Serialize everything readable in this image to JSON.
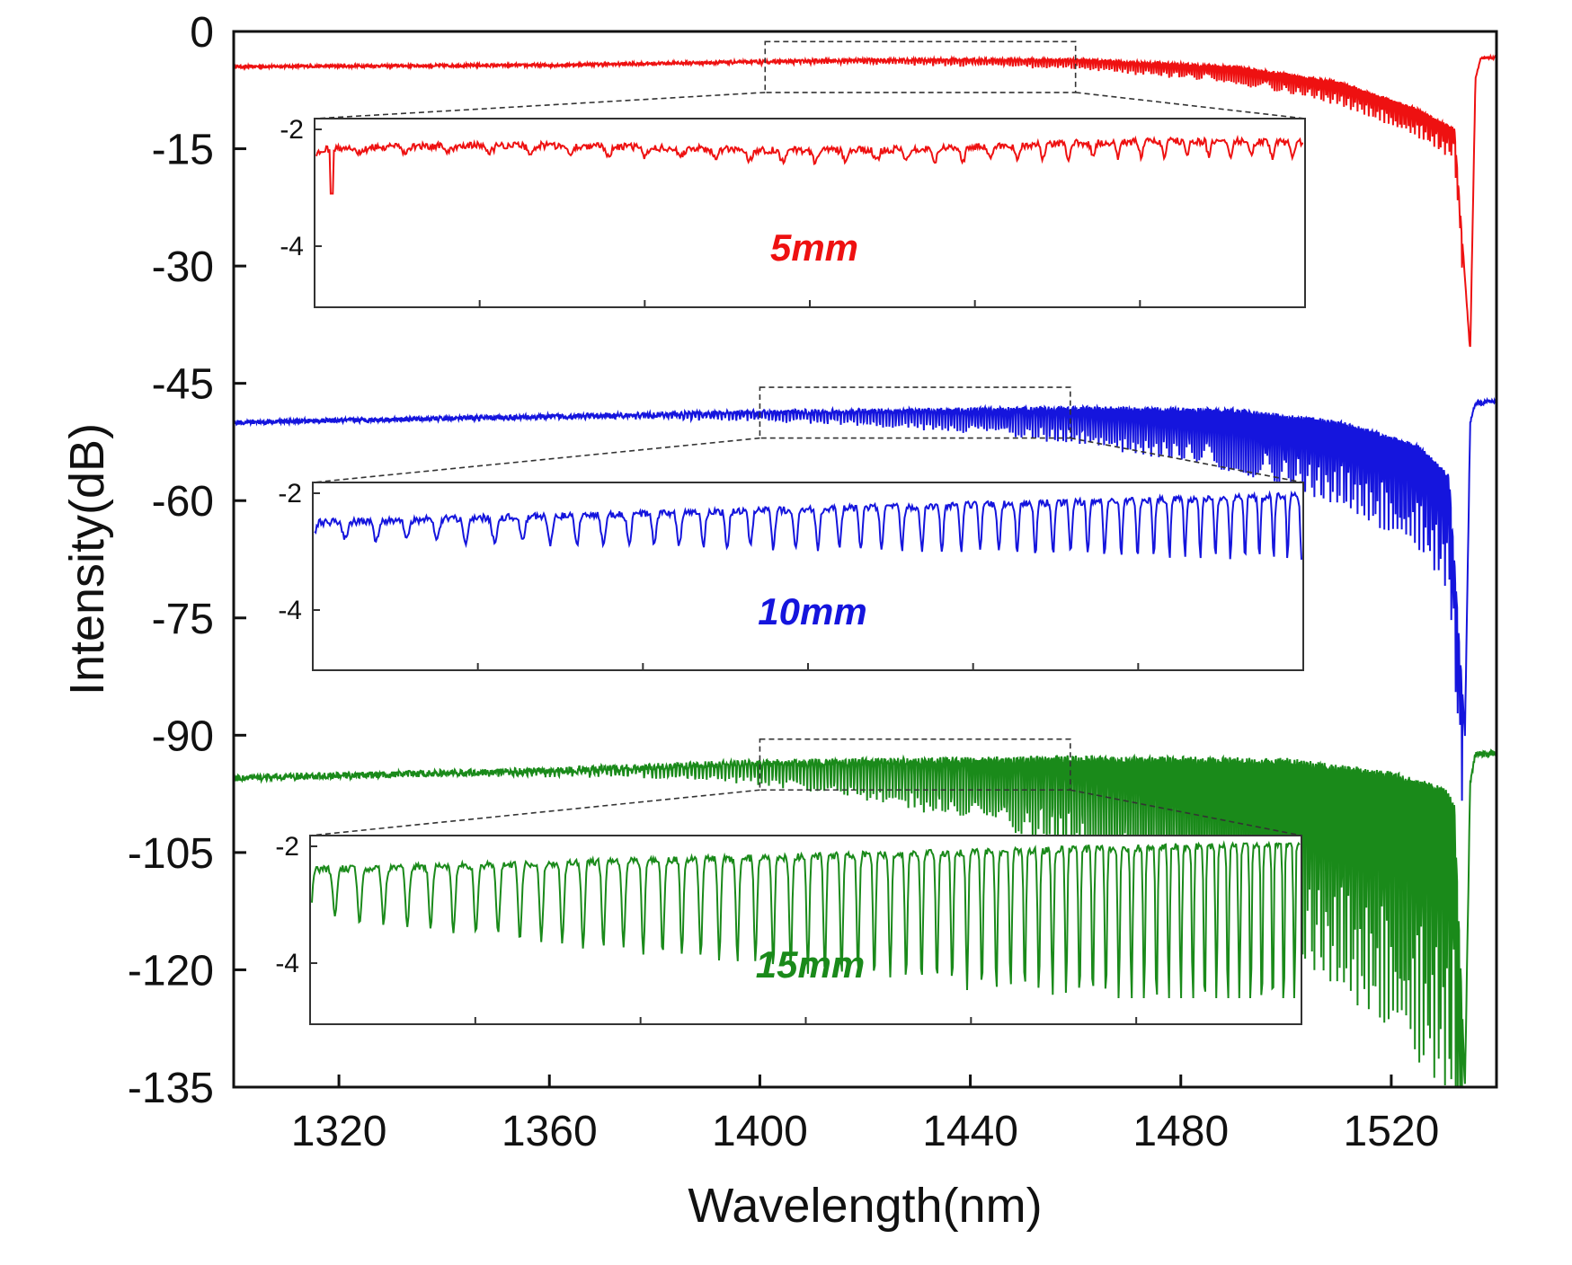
{
  "chart_data": {
    "type": "line",
    "title": "",
    "xlabel": "Wavelength(nm)",
    "ylabel": "Intensity(dB)",
    "xlim": [
      1300,
      1540
    ],
    "ylim": [
      -135,
      0
    ],
    "xticks": [
      1320,
      1360,
      1400,
      1440,
      1480,
      1520
    ],
    "yticks": [
      0,
      -15,
      -30,
      -45,
      -60,
      -75,
      -90,
      -105,
      -120,
      -135
    ],
    "grid": false,
    "series": [
      {
        "name": "5mm",
        "color": "#ee1111",
        "baseline_points": [
          [
            1300,
            -4.5
          ],
          [
            1360,
            -4.3
          ],
          [
            1420,
            -3.6
          ],
          [
            1460,
            -3.6
          ],
          [
            1490,
            -4.5
          ],
          [
            1510,
            -6.5
          ],
          [
            1525,
            -10
          ],
          [
            1532,
            -12.5
          ],
          [
            1535,
            -41
          ],
          [
            1536,
            -6
          ],
          [
            1537,
            -3.5
          ],
          [
            1540,
            -3.3
          ]
        ],
        "fringe_depth_max": 4,
        "zoom_box_x": [
          1401,
          1460
        ],
        "zoom_box_y": [
          -1.3,
          -7.8
        ]
      },
      {
        "name": "10mm",
        "color": "#1515dd",
        "baseline_points": [
          [
            1300,
            -50
          ],
          [
            1340,
            -49.5
          ],
          [
            1400,
            -48.7
          ],
          [
            1460,
            -48.2
          ],
          [
            1490,
            -48.5
          ],
          [
            1510,
            -50
          ],
          [
            1525,
            -53
          ],
          [
            1531,
            -57
          ],
          [
            1534,
            -90
          ],
          [
            1535,
            -50
          ],
          [
            1536,
            -47.5
          ],
          [
            1540,
            -47.3
          ]
        ],
        "fringe_depth_max": 15,
        "zoom_box_x": [
          1400,
          1459
        ],
        "zoom_box_y": [
          -45.5,
          -52
        ]
      },
      {
        "name": "15mm",
        "color": "#1a8a1a",
        "baseline_points": [
          [
            1300,
            -95.5
          ],
          [
            1360,
            -94.5
          ],
          [
            1400,
            -93.5
          ],
          [
            1460,
            -93
          ],
          [
            1500,
            -93.3
          ],
          [
            1520,
            -95
          ],
          [
            1530,
            -97
          ],
          [
            1532,
            -99
          ],
          [
            1534,
            -135
          ],
          [
            1535,
            -96
          ],
          [
            1536,
            -92.5
          ],
          [
            1540,
            -92.3
          ]
        ],
        "fringe_depth_max": 40,
        "zoom_box_x": [
          1400,
          1459
        ],
        "zoom_box_y": [
          -90.5,
          -97
        ]
      }
    ],
    "insets": [
      {
        "series": "5mm",
        "label": "5mm",
        "yticks": [
          "-2",
          "-4"
        ]
      },
      {
        "series": "10mm",
        "label": "10mm",
        "yticks": [
          "-2",
          "-4"
        ]
      },
      {
        "series": "15mm",
        "label": "15mm",
        "yticks": [
          "-2",
          "-4"
        ]
      }
    ]
  }
}
